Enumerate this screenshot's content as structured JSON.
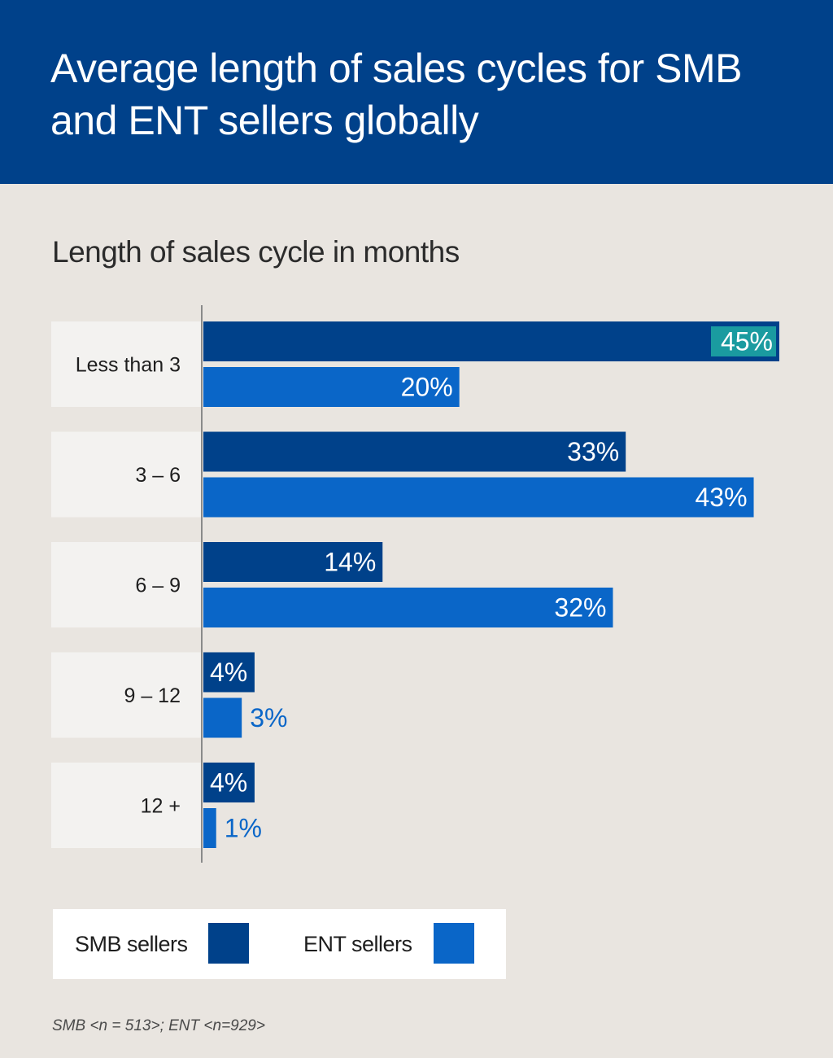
{
  "header": {
    "title": "Average length of sales cycles for SMB and ENT sellers globally"
  },
  "chart_data": {
    "type": "bar",
    "orientation": "horizontal",
    "title": "Length of sales cycle in months",
    "categories": [
      "Less than 3",
      "3 – 6",
      "6 – 9",
      "9 – 12",
      "12 +"
    ],
    "series": [
      {
        "name": "SMB sellers",
        "values": [
          45,
          33,
          14,
          4,
          4
        ],
        "labels": [
          "45%",
          "33%",
          "14%",
          "4%",
          "4%"
        ]
      },
      {
        "name": "ENT sellers",
        "values": [
          20,
          43,
          32,
          3,
          1
        ],
        "labels": [
          "20%",
          "43%",
          "32%",
          "3%",
          "1%"
        ]
      }
    ],
    "xlim": [
      0,
      45
    ],
    "grid": false,
    "legend_position": "bottom",
    "highlight": {
      "series": 0,
      "index": 0,
      "color": "#1a9ba0"
    },
    "colors": {
      "smb": "#00418a",
      "ent": "#0a66c8",
      "category_box": "#f3f2f0",
      "axis": "#8a8a8a"
    }
  },
  "legend": {
    "smb_label": "SMB sellers",
    "ent_label": "ENT sellers"
  },
  "footnote": "SMB <n = 513>; ENT <n=929>"
}
